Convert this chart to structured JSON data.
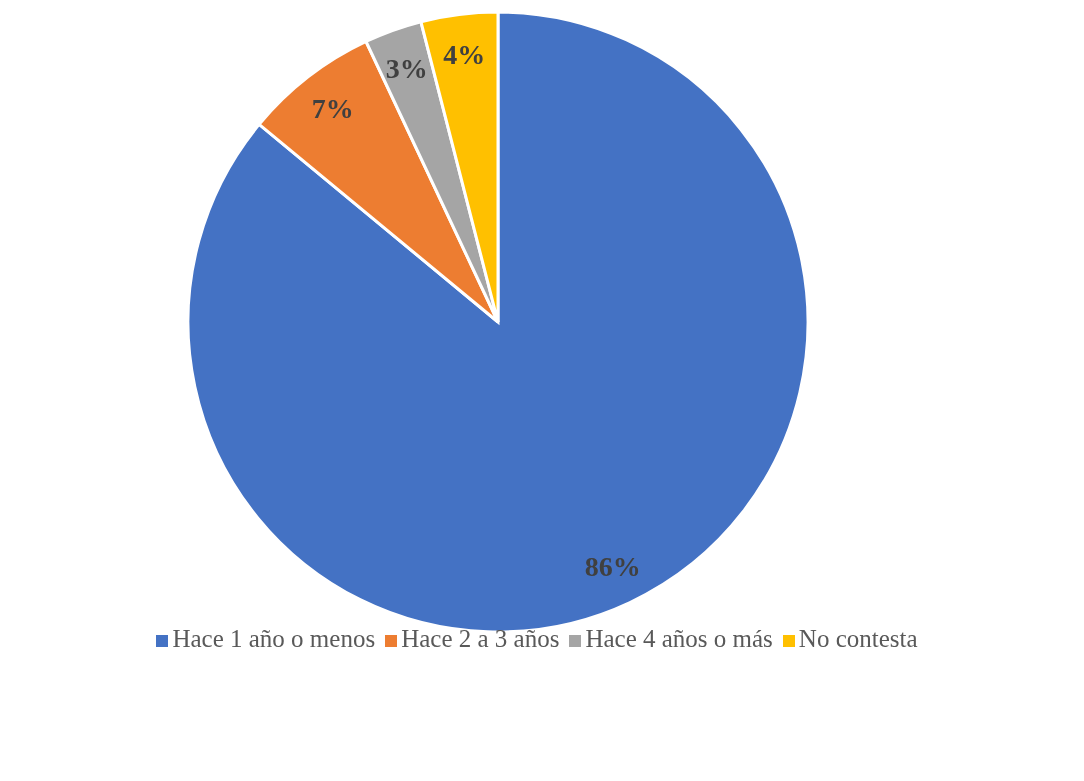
{
  "chart_data": {
    "type": "pie",
    "categories": [
      "Hace 1 año o menos",
      "Hace 2 a 3 años",
      "Hace 4 años o más",
      "No contesta"
    ],
    "values": [
      86,
      7,
      3,
      4
    ],
    "colors": [
      "#4472c4",
      "#ed7d31",
      "#a5a5a5",
      "#ffc000"
    ],
    "value_labels": [
      "86%",
      "7%",
      "3%",
      "4%"
    ],
    "legend": "bottom"
  }
}
